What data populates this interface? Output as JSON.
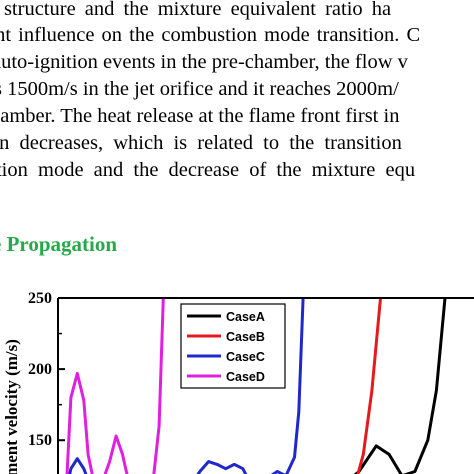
{
  "paragraph": {
    "lines": [
      "r structure and the mixture equivalent ratio ha",
      "ant influence on the combustion mode transition. C",
      "auto-ignition events in the pre-chamber, the flow v",
      "s 1500m/s in the jet orifice and it reaches 2000m/",
      "hamber. The heat release at the flame front first in",
      "en decreases, which is related to the transition",
      "stion mode and the decrease of the mixture equ"
    ]
  },
  "section": {
    "heading": "e Propagation",
    "heading_color": "#27a84a"
  },
  "chart_data": {
    "type": "line",
    "ylabel": "ment velocity (m/s)",
    "yticks": [
      150,
      200,
      250
    ],
    "ylim": [
      115,
      250
    ],
    "legend_position": "top-right",
    "series": [
      {
        "name": "CaseA",
        "color": "#000000",
        "points": [
          [
            0.02,
            118
          ],
          [
            0.12,
            118
          ],
          [
            0.28,
            116
          ],
          [
            0.44,
            117
          ],
          [
            0.58,
            118
          ],
          [
            0.66,
            118
          ],
          [
            0.7,
            128
          ],
          [
            0.74,
            146
          ],
          [
            0.77,
            140
          ],
          [
            0.8,
            125
          ],
          [
            0.83,
            128
          ],
          [
            0.86,
            150
          ],
          [
            0.88,
            185
          ],
          [
            0.9,
            250
          ]
        ]
      },
      {
        "name": "CaseB",
        "color": "#e41a1c",
        "points": [
          [
            0.02,
            116
          ],
          [
            0.03,
            122
          ],
          [
            0.05,
            124
          ],
          [
            0.07,
            118
          ],
          [
            0.09,
            116
          ],
          [
            0.25,
            117
          ],
          [
            0.4,
            118
          ],
          [
            0.5,
            118
          ],
          [
            0.54,
            120
          ],
          [
            0.57,
            124
          ],
          [
            0.6,
            124
          ],
          [
            0.63,
            120
          ],
          [
            0.66,
            116
          ],
          [
            0.69,
            118
          ],
          [
            0.71,
            140
          ],
          [
            0.73,
            185
          ],
          [
            0.75,
            250
          ]
        ]
      },
      {
        "name": "CaseC",
        "color": "#1f28c8",
        "points": [
          [
            0.02,
            116
          ],
          [
            0.03,
            130
          ],
          [
            0.045,
            137
          ],
          [
            0.06,
            130
          ],
          [
            0.075,
            118
          ],
          [
            0.11,
            116
          ],
          [
            0.2,
            117
          ],
          [
            0.24,
            116
          ],
          [
            0.27,
            119
          ],
          [
            0.3,
            115
          ],
          [
            0.33,
            128
          ],
          [
            0.35,
            135
          ],
          [
            0.37,
            133
          ],
          [
            0.39,
            130
          ],
          [
            0.41,
            133
          ],
          [
            0.43,
            130
          ],
          [
            0.45,
            118
          ],
          [
            0.47,
            116
          ],
          [
            0.49,
            124
          ],
          [
            0.51,
            128
          ],
          [
            0.53,
            125
          ],
          [
            0.55,
            138
          ],
          [
            0.56,
            170
          ],
          [
            0.57,
            250
          ]
        ]
      },
      {
        "name": "CaseD",
        "color": "#e020e0",
        "points": [
          [
            0.02,
            120
          ],
          [
            0.03,
            180
          ],
          [
            0.045,
            197
          ],
          [
            0.06,
            178
          ],
          [
            0.07,
            140
          ],
          [
            0.085,
            118
          ],
          [
            0.1,
            118
          ],
          [
            0.12,
            135
          ],
          [
            0.135,
            153
          ],
          [
            0.15,
            140
          ],
          [
            0.165,
            120
          ],
          [
            0.18,
            116
          ],
          [
            0.2,
            120
          ],
          [
            0.22,
            118
          ],
          [
            0.235,
            160
          ],
          [
            0.245,
            250
          ]
        ]
      }
    ]
  }
}
